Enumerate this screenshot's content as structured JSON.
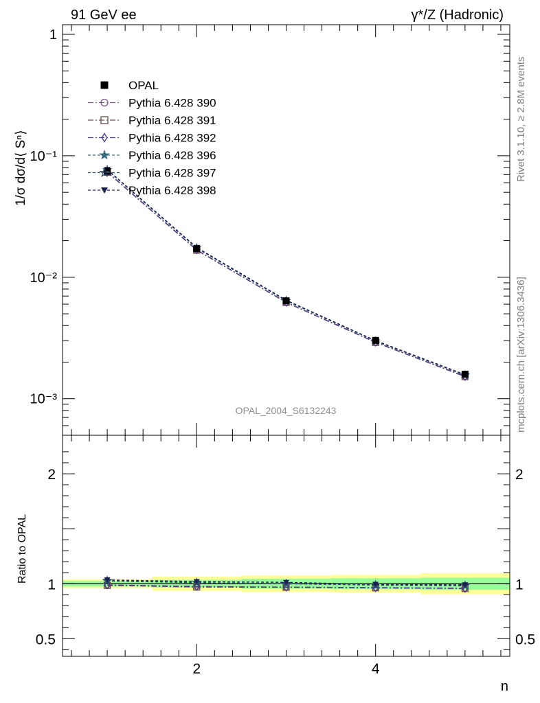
{
  "header": {
    "left": "91 GeV ee",
    "right": "γ*/Z (Hadronic)"
  },
  "side_labels": {
    "rivet": "Rivet 3.1.10, ≥ 2.8M events",
    "mcplots": "mcplots.cern.ch [arXiv:1306.3436]"
  },
  "analysis_id": "OPAL_2004_S6132243",
  "chart_data": [
    {
      "type": "scatter",
      "ylabel": "1/σ dσ/d⟨ Sⁿ⟩",
      "yscale": "log",
      "ylim": [
        0.0005,
        1.2
      ],
      "xlim": [
        0.5,
        5.5
      ],
      "y_ticks": [
        {
          "value": 1,
          "label": "1"
        },
        {
          "value": 0.1,
          "label": "10⁻¹"
        },
        {
          "value": 0.01,
          "label": "10⁻²"
        },
        {
          "value": 0.001,
          "label": "10⁻³"
        }
      ],
      "x": [
        1,
        2,
        3,
        4,
        5
      ],
      "legend_position": "top-left",
      "series": [
        {
          "name": "OPAL",
          "marker": "square-filled",
          "color": "#000000",
          "values": [
            0.0745,
            0.0172,
            0.0064,
            0.00302,
            0.00159
          ]
        },
        {
          "name": "Pythia 6.428 390",
          "marker": "circle-open",
          "color": "#7d5a8a",
          "dash": "8 3 2 3",
          "values": [
            0.0738,
            0.0168,
            0.00622,
            0.00292,
            0.00153
          ]
        },
        {
          "name": "Pythia 6.428 391",
          "marker": "square-open",
          "color": "#6e4a4a",
          "dash": "8 3 2 3",
          "values": [
            0.0733,
            0.0167,
            0.0062,
            0.00291,
            0.00152
          ]
        },
        {
          "name": "Pythia 6.428 392",
          "marker": "diamond-open",
          "color": "#4a3a8a",
          "dash": "8 3 2 3",
          "values": [
            0.0735,
            0.0168,
            0.00621,
            0.00291,
            0.00152
          ]
        },
        {
          "name": "Pythia 6.428 396",
          "marker": "star-filled",
          "color": "#3a6a80",
          "dash": "4 3",
          "values": [
            0.0768,
            0.0174,
            0.0064,
            0.00298,
            0.00157
          ]
        },
        {
          "name": "Pythia 6.428 397",
          "marker": "star-open",
          "color": "#2a4a6a",
          "dash": "4 3",
          "values": [
            0.0764,
            0.0174,
            0.0064,
            0.00298,
            0.00156
          ]
        },
        {
          "name": "Pythia 6.428 398",
          "marker": "triangle-down-filled",
          "color": "#1a2050",
          "dash": "4 3",
          "values": [
            0.0772,
            0.0176,
            0.00648,
            0.00301,
            0.00158
          ]
        }
      ]
    },
    {
      "type": "line",
      "ylabel": "Ratio to OPAL",
      "xlabel": "n",
      "ylim": [
        0.34,
        2.35
      ],
      "xlim": [
        0.5,
        5.5
      ],
      "y_ticks": [
        {
          "value": 0.5,
          "label": "0.5"
        },
        {
          "value": 1,
          "label": "1"
        },
        {
          "value": 2,
          "label": "2"
        }
      ],
      "x_ticks": [
        {
          "value": 2,
          "label": "2"
        },
        {
          "value": 4,
          "label": "4"
        }
      ],
      "x": [
        1,
        2,
        3,
        4,
        5
      ],
      "bands": {
        "x_edges": [
          0.5,
          1.5,
          2.5,
          3.5,
          4.5,
          5.5
        ],
        "inner_halfwidth": [
          0.025,
          0.035,
          0.045,
          0.05,
          0.055
        ],
        "outer_halfwidth": [
          0.04,
          0.065,
          0.075,
          0.08,
          0.095
        ]
      },
      "series": [
        {
          "name": "Pythia 6.428 390",
          "values": [
            0.99,
            0.975,
            0.97,
            0.965,
            0.96
          ]
        },
        {
          "name": "Pythia 6.428 391",
          "values": [
            0.985,
            0.97,
            0.968,
            0.963,
            0.957
          ]
        },
        {
          "name": "Pythia 6.428 392",
          "values": [
            0.988,
            0.975,
            0.968,
            0.963,
            0.957
          ]
        },
        {
          "name": "Pythia 6.428 396",
          "values": [
            1.03,
            1.01,
            1.0,
            0.99,
            0.985
          ]
        },
        {
          "name": "Pythia 6.428 397",
          "values": [
            1.025,
            1.01,
            1.0,
            0.988,
            0.982
          ]
        },
        {
          "name": "Pythia 6.428 398",
          "values": [
            1.035,
            1.02,
            1.012,
            0.995,
            0.99
          ]
        }
      ]
    }
  ]
}
